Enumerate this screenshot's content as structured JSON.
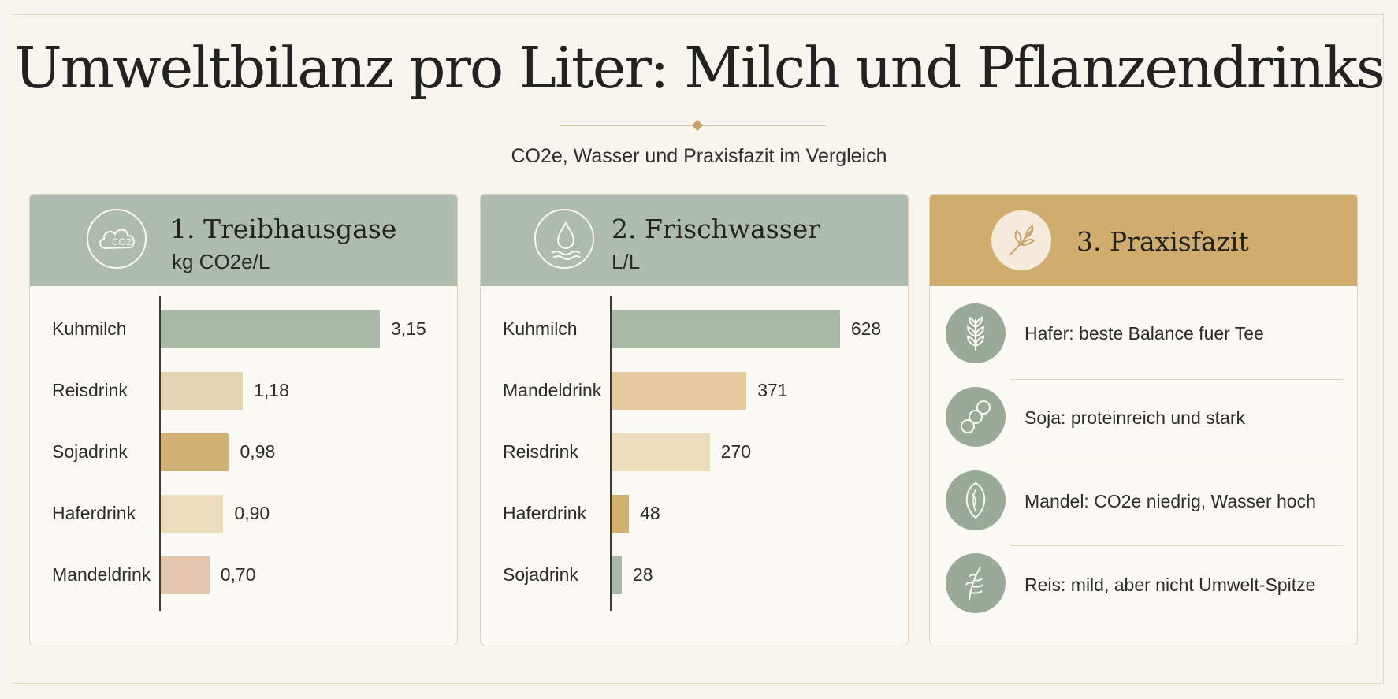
{
  "header": {
    "title": "Umweltbilanz pro Liter: Milch und Pflanzendrinks",
    "subtitle": "CO2e, Wasser und Praxisfazit im Vergleich"
  },
  "panels": {
    "ghg": {
      "title": "1. Treibhausgase",
      "unit": "kg CO2e/L",
      "icon": "co2-cloud-icon",
      "icon_text": "CO2"
    },
    "water": {
      "title": "2. Frischwasser",
      "unit": "L/L",
      "icon": "water-drop-icon"
    },
    "summary": {
      "title": "3. Praxisfazit",
      "icon": "leaf-branch-icon"
    }
  },
  "chart_data": [
    {
      "type": "bar",
      "orientation": "horizontal",
      "title": "1. Treibhausgase",
      "unit": "kg CO2e/L",
      "categories": [
        "Kuhmilch",
        "Reisdrink",
        "Sojadrink",
        "Haferdrink",
        "Mandeldrink"
      ],
      "values": [
        3.15,
        1.18,
        0.98,
        0.9,
        0.7
      ],
      "value_labels": [
        "3,15",
        "1,18",
        "0,98",
        "0,90",
        "0,70"
      ],
      "colors": [
        "#a7b8a5",
        "#e6d5b5",
        "#d2b174",
        "#ebdcbb",
        "#e2c6ad"
      ],
      "xlim": [
        0,
        3.4
      ]
    },
    {
      "type": "bar",
      "orientation": "horizontal",
      "title": "2. Frischwasser",
      "unit": "L/L",
      "categories": [
        "Kuhmilch",
        "Mandeldrink",
        "Reisdrink",
        "Haferdrink",
        "Sojadrink"
      ],
      "values": [
        628,
        371,
        270,
        48,
        28
      ],
      "value_labels": [
        "628",
        "371",
        "270",
        "48",
        "28"
      ],
      "colors": [
        "#a7b8a5",
        "#e3ca9f",
        "#ebdcbb",
        "#d4b070",
        "#a7b8a5"
      ],
      "xlim": [
        0,
        650
      ]
    }
  ],
  "summary_items": [
    {
      "icon": "oat-plant-icon",
      "text": "Hafer: beste Balance fuer Tee"
    },
    {
      "icon": "soybean-pod-icon",
      "text": "Soja: proteinreich und stark"
    },
    {
      "icon": "almond-icon",
      "text": "Mandel: CO2e niedrig, Wasser hoch"
    },
    {
      "icon": "rice-plant-icon",
      "text": "Reis: mild, aber nicht Umwelt-Spitze"
    }
  ],
  "colors": {
    "background": "#f8f5ee",
    "header_green": "#aebcad",
    "header_gold": "#d0ad6e",
    "icon_circle": "#9aaa98"
  }
}
